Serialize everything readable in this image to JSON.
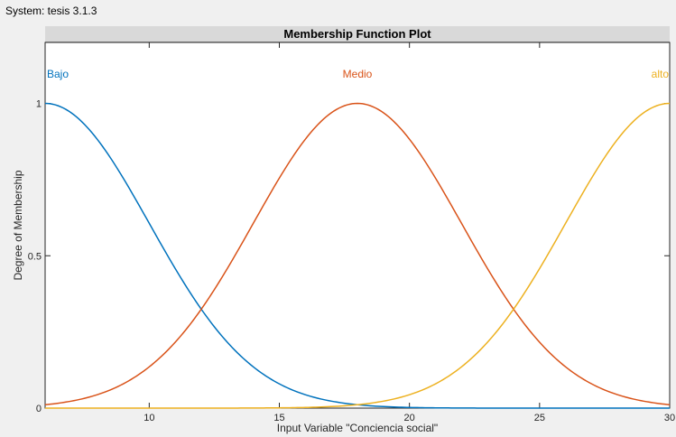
{
  "window": {
    "system_label": "System: tesis 3.1.3"
  },
  "chart_data": {
    "type": "line",
    "title": "Membership Function Plot",
    "xlabel": "Input Variable \"Conciencia social\"",
    "ylabel": "Degree of Membership",
    "xlim": [
      6,
      30
    ],
    "ylim": [
      0,
      1.2
    ],
    "xticks": [
      10,
      15,
      20,
      25,
      30
    ],
    "yticks": [
      0,
      0.5,
      1
    ],
    "grid": false,
    "series": [
      {
        "name": "Bajo",
        "shape": "gaussian",
        "center": 6,
        "sigma": 4,
        "color": "#0072BD"
      },
      {
        "name": "Medio",
        "shape": "gaussian",
        "center": 18,
        "sigma": 4,
        "color": "#D95319"
      },
      {
        "name": "alto",
        "shape": "gaussian",
        "center": 30,
        "sigma": 4,
        "color": "#EDB120"
      }
    ]
  }
}
